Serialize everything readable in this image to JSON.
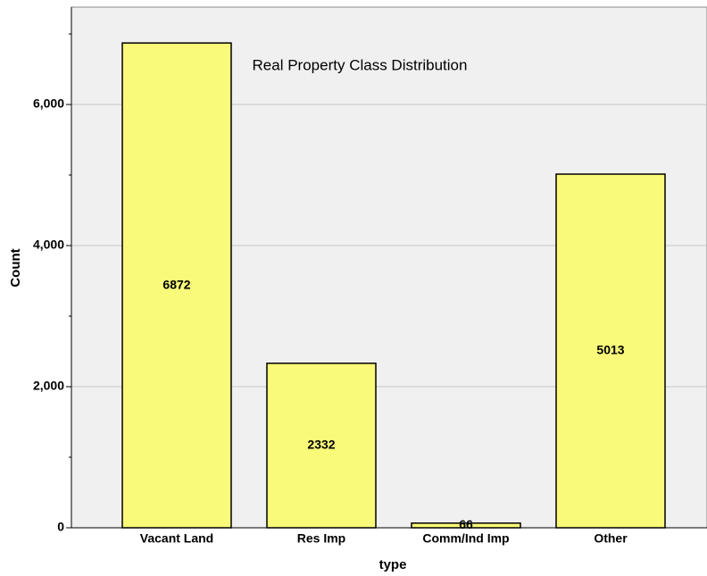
{
  "chart_data": {
    "type": "bar",
    "title": "Real Property Class Distribution",
    "categories": [
      "Vacant Land",
      "Res Imp",
      "Comm/Ind Imp",
      "Other"
    ],
    "values": [
      6872,
      2332,
      66,
      5013
    ],
    "color": "#f9f97a",
    "xlabel": "type",
    "ylabel": "Count",
    "ylim": [
      0,
      7380
    ],
    "yticks": [
      0,
      {
        "value": 2000,
        "label": "2,000"
      },
      {
        "value": 4000,
        "label": "4,000"
      },
      {
        "value": 6000,
        "label": "6,000"
      }
    ],
    "minor_yticks": [
      1000,
      3000,
      5000,
      7000
    ],
    "grid": true
  }
}
